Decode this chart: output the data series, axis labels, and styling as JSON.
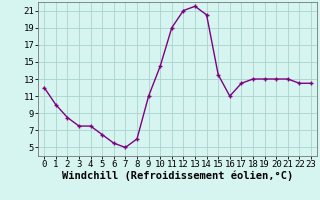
{
  "hours": [
    0,
    1,
    2,
    3,
    4,
    5,
    6,
    7,
    8,
    9,
    10,
    11,
    12,
    13,
    14,
    15,
    16,
    17,
    18,
    19,
    20,
    21,
    22,
    23
  ],
  "values": [
    12.0,
    10.0,
    8.5,
    7.5,
    7.5,
    6.5,
    5.5,
    5.0,
    6.0,
    11.0,
    14.5,
    19.0,
    21.0,
    21.5,
    20.5,
    13.5,
    11.0,
    12.5,
    13.0,
    13.0,
    13.0,
    13.0,
    12.5,
    12.5
  ],
  "line_color": "#800080",
  "marker": "+",
  "marker_size": 3,
  "marker_linewidth": 1.0,
  "background_color": "#d6f5f0",
  "grid_color": "#aad4ce",
  "xlabel": "Windchill (Refroidissement éolien,°C)",
  "xlabel_fontsize": 7.5,
  "tick_fontsize": 6.5,
  "ylim": [
    4,
    22
  ],
  "yticks": [
    5,
    7,
    9,
    11,
    13,
    15,
    17,
    19,
    21
  ],
  "xlim": [
    -0.5,
    23.5
  ],
  "line_width": 1.0
}
